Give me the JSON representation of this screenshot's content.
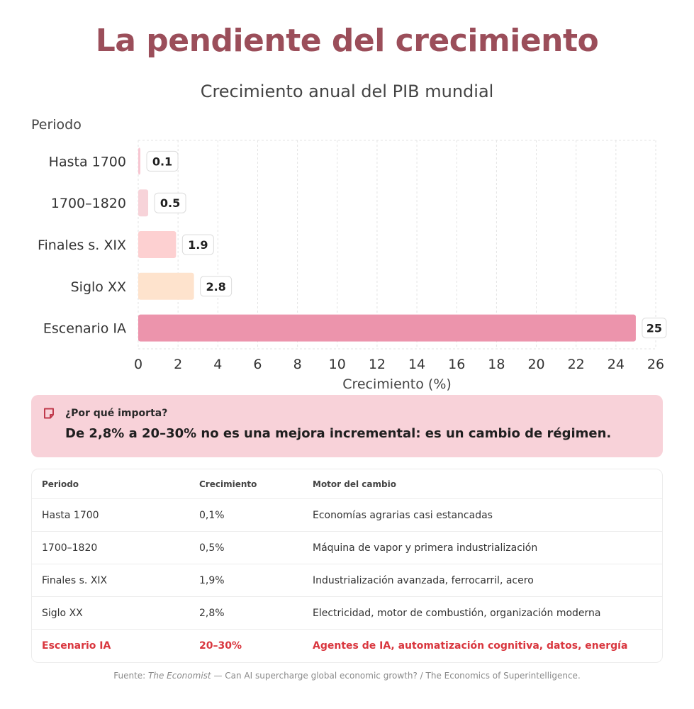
{
  "title": "La pendiente del crecimiento",
  "chart_data": {
    "type": "bar",
    "orientation": "horizontal",
    "title": "Crecimiento anual del PIB mundial",
    "ylabel": "Periodo",
    "xlabel": "Crecimiento (%)",
    "categories": [
      "Hasta 1700",
      "1700–1820",
      "Finales s. XIX",
      "Siglo XX",
      "Escenario IA"
    ],
    "values": [
      0.1,
      0.5,
      1.9,
      2.8,
      25
    ],
    "value_labels": [
      "0.1",
      "0.5",
      "1.9",
      "2.8",
      "25"
    ],
    "colors": [
      "#f7c7d2",
      "#f7d3d9",
      "#fdd0d1",
      "#fee3cd",
      "#ec94ac"
    ],
    "xlim": [
      0,
      26
    ],
    "xticks": [
      0,
      2,
      4,
      6,
      8,
      10,
      12,
      14,
      16,
      18,
      20,
      22,
      24,
      26
    ],
    "grid": true,
    "legend": "none"
  },
  "callout": {
    "label": "¿Por qué importa?",
    "text": "De 2,8% a 20–30% no es una mejora incremental: es un cambio de régimen.",
    "icon": "note-icon"
  },
  "table": {
    "headers": [
      "Periodo",
      "Crecimiento",
      "Motor del cambio"
    ],
    "rows": [
      [
        "Hasta 1700",
        "0,1%",
        "Economías agrarias casi estancadas"
      ],
      [
        "1700–1820",
        "0,5%",
        "Máquina de vapor y primera industrialización"
      ],
      [
        "Finales s. XIX",
        "1,9%",
        "Industrialización avanzada, ferrocarril, acero"
      ],
      [
        "Siglo XX",
        "2,8%",
        "Electricidad, motor de combustión, organización moderna"
      ],
      [
        "Escenario IA",
        "20–30%",
        "Agentes de IA, automatización cognitiva, datos, energía"
      ]
    ],
    "highlight_color": "#d9363e"
  },
  "source": {
    "prefix": "Fuente: ",
    "publication": "The Economist",
    "rest": " — Can AI supercharge global economic growth? / The Economics of Superintelligence."
  },
  "colors": {
    "title": "#9b4e5a",
    "callout_bg": "#f8d2d9",
    "icon": "#c0394b"
  }
}
